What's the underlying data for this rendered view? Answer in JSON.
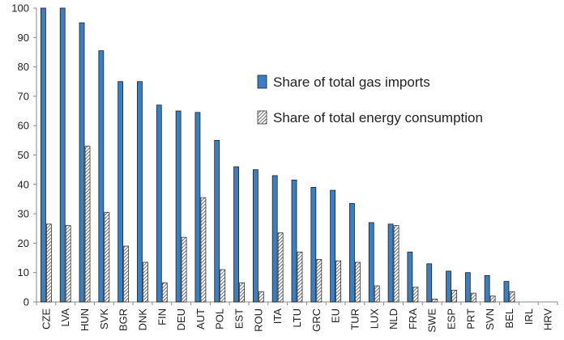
{
  "chart_data": {
    "type": "bar",
    "categories": [
      "CZE",
      "LVA",
      "HUN",
      "SVK",
      "BGR",
      "DNK",
      "FIN",
      "DEU",
      "AUT",
      "POL",
      "EST",
      "ROU",
      "ITA",
      "LTU",
      "GRC",
      "EU",
      "TUR",
      "LUX",
      "NLD",
      "FRA",
      "SWE",
      "ESP",
      "PRT",
      "SVN",
      "BEL",
      "IRL",
      "HRV"
    ],
    "series": [
      {
        "name": "Share of total gas imports",
        "pattern": "solid",
        "color": "#3a7fc1",
        "values": [
          100,
          100,
          95,
          85.5,
          75,
          75,
          67,
          65,
          64.5,
          55,
          46,
          45,
          43,
          41.5,
          39,
          38,
          33.5,
          27,
          26.5,
          17,
          13,
          10.5,
          10,
          9,
          7,
          0,
          0
        ]
      },
      {
        "name": "Share of total energy consumption",
        "pattern": "hatched",
        "color": "#555555",
        "values": [
          26.5,
          26,
          53,
          30.5,
          19,
          13.5,
          6.5,
          22,
          35.5,
          11,
          6.5,
          3.5,
          23.5,
          17,
          14.5,
          14,
          13.5,
          5.5,
          26,
          5,
          1,
          4,
          3,
          2,
          3.5,
          0,
          0
        ]
      }
    ],
    "xlabel": "",
    "ylabel": "",
    "ylim": [
      0,
      100
    ],
    "yticks": [
      "0",
      "10",
      "20",
      "30",
      "40",
      "50",
      "60",
      "70",
      "80",
      "90",
      "100"
    ],
    "grid": false,
    "legend_position": "right"
  }
}
